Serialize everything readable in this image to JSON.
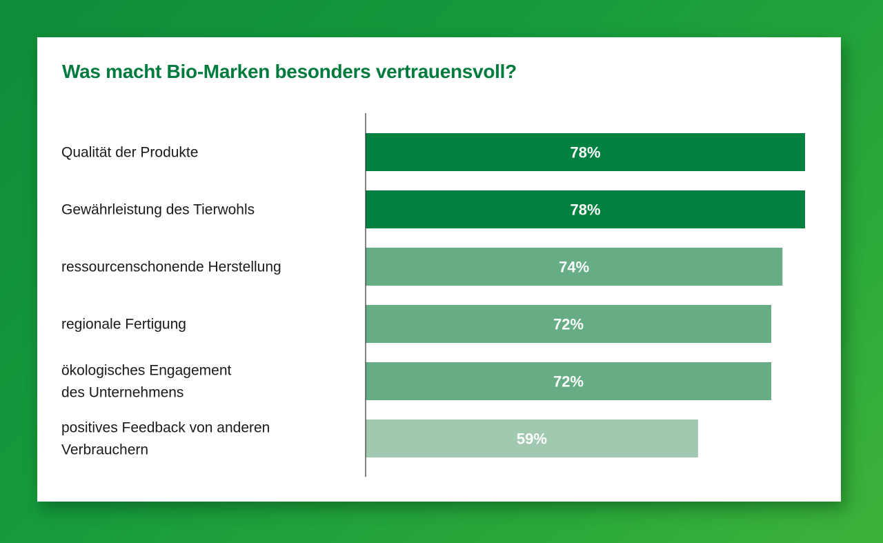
{
  "chart_data": {
    "type": "bar",
    "orientation": "horizontal",
    "title": "Was macht Bio-Marken besonders vertrauensvoll?",
    "categories": [
      [
        "Qualität der Produkte"
      ],
      [
        "Gewährleistung des Tierwohls"
      ],
      [
        "ressourcenschonende Herstellung"
      ],
      [
        "regionale Fertigung"
      ],
      [
        "ökologisches Engagement",
        "des Unternehmens"
      ],
      [
        "positives Feedback von anderen",
        "Verbrauchern"
      ]
    ],
    "values": [
      78,
      78,
      74,
      72,
      72,
      59
    ],
    "value_labels": [
      "78%",
      "78%",
      "74%",
      "72%",
      "72%",
      "59%"
    ],
    "xlim": [
      0,
      78
    ],
    "grid": false,
    "legend": "none",
    "bar_colors": [
      "#00813f",
      "#00813f",
      "#66ad85",
      "#66ad85",
      "#66ad85",
      "#a0c9b0"
    ],
    "axis_color": "#333333"
  },
  "colors": {
    "title": "#007a3d",
    "card_background": "#ffffff",
    "page_background": "#169a3c"
  }
}
